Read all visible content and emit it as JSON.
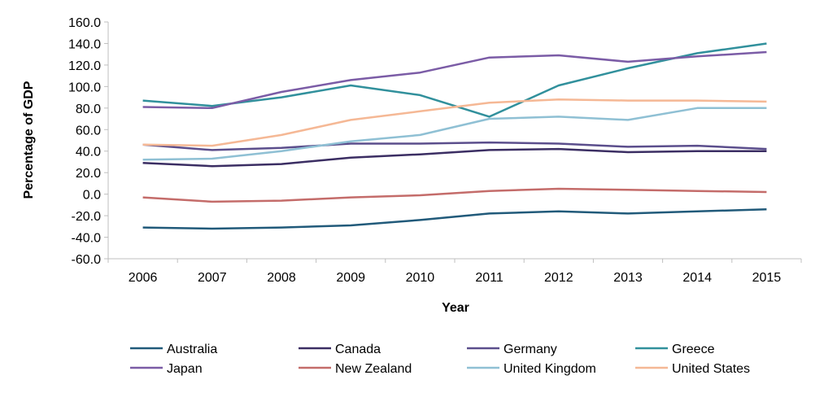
{
  "chart_data": {
    "type": "line",
    "title": "",
    "xlabel": "Year",
    "ylabel": "Percentage of GDP",
    "ylim": [
      -60,
      160
    ],
    "ytick_step": 20,
    "ytick_labels": [
      "-60.0",
      "-40.0",
      "-20.0",
      "0.0",
      "20.0",
      "40.0",
      "60.0",
      "80.0",
      "100.0",
      "120.0",
      "140.0",
      "160.0"
    ],
    "categories": [
      "2006",
      "2007",
      "2008",
      "2009",
      "2010",
      "2011",
      "2012",
      "2013",
      "2014",
      "2015"
    ],
    "grid": false,
    "legend_position": "bottom",
    "series": [
      {
        "name": "Australia",
        "color": "#215A7A",
        "values": [
          -31,
          -32,
          -31,
          -29,
          -24,
          -18,
          -16,
          -18,
          -16,
          -14
        ]
      },
      {
        "name": "Canada",
        "color": "#3B2E63",
        "values": [
          29,
          26,
          28,
          34,
          37,
          41,
          42,
          39,
          40,
          40
        ]
      },
      {
        "name": "Germany",
        "color": "#5B4E8C",
        "values": [
          46,
          41,
          43,
          47,
          47,
          48,
          47,
          44,
          45,
          42
        ]
      },
      {
        "name": "Greece",
        "color": "#31909C",
        "values": [
          87,
          82,
          90,
          101,
          92,
          72,
          101,
          117,
          131,
          140
        ]
      },
      {
        "name": "Japan",
        "color": "#7B5CA6",
        "values": [
          81,
          80,
          95,
          106,
          113,
          127,
          129,
          123,
          128,
          132
        ]
      },
      {
        "name": "New Zealand",
        "color": "#C46C6A",
        "values": [
          -3,
          -7,
          -6,
          -3,
          -1,
          3,
          5,
          4,
          3,
          2
        ]
      },
      {
        "name": "United Kingdom",
        "color": "#8FC0D4",
        "values": [
          32,
          33,
          40,
          49,
          55,
          70,
          72,
          69,
          80,
          80
        ]
      },
      {
        "name": "United States",
        "color": "#F5B895",
        "values": [
          46,
          45,
          55,
          69,
          77,
          85,
          88,
          87,
          87,
          86
        ]
      }
    ]
  }
}
